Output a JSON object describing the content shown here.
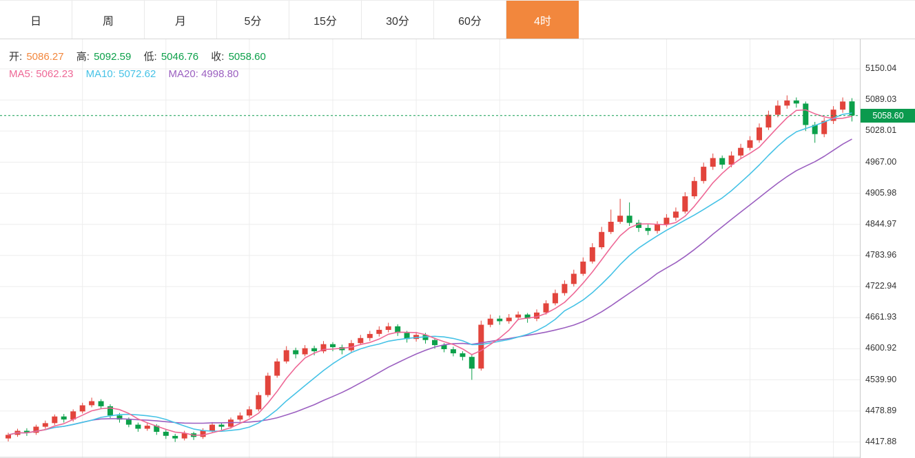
{
  "tabs": {
    "items": [
      {
        "label": "日",
        "active": false
      },
      {
        "label": "周",
        "active": false
      },
      {
        "label": "月",
        "active": false
      },
      {
        "label": "5分",
        "active": false
      },
      {
        "label": "15分",
        "active": false
      },
      {
        "label": "30分",
        "active": false
      },
      {
        "label": "60分",
        "active": false
      },
      {
        "label": "4时",
        "active": true
      }
    ]
  },
  "legend": {
    "open_label": "开:",
    "open_value": "5086.27",
    "high_label": "高:",
    "high_value": "5092.59",
    "low_label": "低:",
    "low_value": "5046.76",
    "close_label": "收:",
    "close_value": "5058.60",
    "ma5_label": "MA5:",
    "ma5_value": "5062.23",
    "ma10_label": "MA10:",
    "ma10_value": "5072.62",
    "ma20_label": "MA20:",
    "ma20_value": "4998.80"
  },
  "y_axis": {
    "current_badge": "5058.60"
  },
  "colors": {
    "accent_orange": "#f2873d",
    "up_red": "#e2443c",
    "down_green": "#0ca04a",
    "ma5_pink": "#ee6896",
    "ma10_cyan": "#45c2e6",
    "ma20_purple": "#9b5fc0",
    "price_line_green": "#0b9a4e",
    "grid": "#ededed"
  },
  "chart_data": {
    "type": "candlestick",
    "timeframe": "4时",
    "current_price": 5058.6,
    "ohlc_last": {
      "open": 5086.27,
      "high": 5092.59,
      "low": 5046.76,
      "close": 5058.6
    },
    "moving_averages": {
      "MA5": 5062.23,
      "MA10": 5072.62,
      "MA20": 4998.8
    },
    "y_ticks": [
      5150.04,
      5089.03,
      5028.01,
      4967.0,
      4905.98,
      4844.97,
      4783.96,
      4722.94,
      4661.93,
      4600.92,
      4539.9,
      4478.89,
      4417.88
    ],
    "grid": true,
    "legend_position": "top-left",
    "candle_format": [
      "open",
      "high",
      "low",
      "close"
    ],
    "candles": [
      [
        4425,
        4436,
        4419,
        4432
      ],
      [
        4432,
        4444,
        4428,
        4440
      ],
      [
        4440,
        4445,
        4430,
        4436
      ],
      [
        4436,
        4452,
        4432,
        4448
      ],
      [
        4448,
        4460,
        4444,
        4455
      ],
      [
        4455,
        4472,
        4451,
        4468
      ],
      [
        4468,
        4473,
        4456,
        4462
      ],
      [
        4462,
        4482,
        4458,
        4478
      ],
      [
        4478,
        4495,
        4474,
        4490
      ],
      [
        4490,
        4505,
        4486,
        4498
      ],
      [
        4498,
        4502,
        4483,
        4488
      ],
      [
        4488,
        4492,
        4465,
        4470
      ],
      [
        4470,
        4475,
        4456,
        4462
      ],
      [
        4462,
        4466,
        4447,
        4452
      ],
      [
        4452,
        4456,
        4438,
        4444
      ],
      [
        4444,
        4455,
        4440,
        4450
      ],
      [
        4450,
        4453,
        4432,
        4438
      ],
      [
        4438,
        4442,
        4424,
        4430
      ],
      [
        4430,
        4434,
        4418,
        4425
      ],
      [
        4425,
        4440,
        4421,
        4435
      ],
      [
        4435,
        4438,
        4422,
        4428
      ],
      [
        4428,
        4445,
        4424,
        4440
      ],
      [
        4440,
        4457,
        4436,
        4452
      ],
      [
        4452,
        4456,
        4442,
        4448
      ],
      [
        4448,
        4466,
        4444,
        4462
      ],
      [
        4462,
        4476,
        4458,
        4470
      ],
      [
        4470,
        4488,
        4466,
        4482
      ],
      [
        4482,
        4516,
        4478,
        4510
      ],
      [
        4510,
        4554,
        4506,
        4548
      ],
      [
        4548,
        4582,
        4544,
        4576
      ],
      [
        4576,
        4606,
        4572,
        4598
      ],
      [
        4598,
        4603,
        4582,
        4590
      ],
      [
        4590,
        4608,
        4586,
        4602
      ],
      [
        4602,
        4607,
        4588,
        4596
      ],
      [
        4596,
        4616,
        4592,
        4610
      ],
      [
        4610,
        4614,
        4596,
        4604
      ],
      [
        4604,
        4609,
        4590,
        4598
      ],
      [
        4598,
        4618,
        4594,
        4612
      ],
      [
        4612,
        4628,
        4608,
        4622
      ],
      [
        4622,
        4636,
        4616,
        4630
      ],
      [
        4630,
        4645,
        4625,
        4638
      ],
      [
        4638,
        4652,
        4633,
        4645
      ],
      [
        4645,
        4649,
        4626,
        4632
      ],
      [
        4632,
        4636,
        4613,
        4620
      ],
      [
        4620,
        4634,
        4615,
        4628
      ],
      [
        4628,
        4632,
        4611,
        4618
      ],
      [
        4618,
        4622,
        4601,
        4608
      ],
      [
        4608,
        4612,
        4594,
        4600
      ],
      [
        4600,
        4605,
        4586,
        4592
      ],
      [
        4592,
        4596,
        4578,
        4585
      ],
      [
        4585,
        4589,
        4540,
        4562
      ],
      [
        4562,
        4656,
        4558,
        4648
      ],
      [
        4648,
        4668,
        4643,
        4660
      ],
      [
        4660,
        4666,
        4648,
        4655
      ],
      [
        4655,
        4669,
        4650,
        4662
      ],
      [
        4662,
        4674,
        4657,
        4668
      ],
      [
        4668,
        4671,
        4652,
        4660
      ],
      [
        4660,
        4678,
        4655,
        4672
      ],
      [
        4672,
        4696,
        4668,
        4690
      ],
      [
        4690,
        4717,
        4686,
        4710
      ],
      [
        4710,
        4735,
        4705,
        4728
      ],
      [
        4728,
        4756,
        4723,
        4748
      ],
      [
        4748,
        4780,
        4744,
        4772
      ],
      [
        4772,
        4808,
        4768,
        4800
      ],
      [
        4800,
        4840,
        4796,
        4830
      ],
      [
        4830,
        4874,
        4826,
        4850
      ],
      [
        4850,
        4895,
        4846,
        4862
      ],
      [
        4862,
        4888,
        4842,
        4848
      ],
      [
        4848,
        4854,
        4830,
        4838
      ],
      [
        4838,
        4845,
        4824,
        4832
      ],
      [
        4832,
        4851,
        4827,
        4845
      ],
      [
        4845,
        4865,
        4840,
        4858
      ],
      [
        4858,
        4878,
        4852,
        4870
      ],
      [
        4870,
        4908,
        4866,
        4900
      ],
      [
        4900,
        4938,
        4895,
        4930
      ],
      [
        4930,
        4966,
        4925,
        4958
      ],
      [
        4958,
        4984,
        4952,
        4975
      ],
      [
        4975,
        4980,
        4954,
        4962
      ],
      [
        4962,
        4988,
        4957,
        4980
      ],
      [
        4980,
        5003,
        4975,
        4995
      ],
      [
        4995,
        5018,
        4990,
        5010
      ],
      [
        5010,
        5043,
        5005,
        5035
      ],
      [
        5035,
        5068,
        5030,
        5060
      ],
      [
        5060,
        5088,
        5055,
        5078
      ],
      [
        5078,
        5098,
        5072,
        5088
      ],
      [
        5088,
        5094,
        5074,
        5082
      ],
      [
        5082,
        5086,
        5028,
        5040
      ],
      [
        5040,
        5046,
        5005,
        5022
      ],
      [
        5022,
        5054,
        5016,
        5048
      ],
      [
        5048,
        5077,
        5042,
        5070
      ],
      [
        5070,
        5094,
        5064,
        5086
      ],
      [
        5086.27,
        5092.59,
        5046.76,
        5058.6
      ]
    ]
  }
}
